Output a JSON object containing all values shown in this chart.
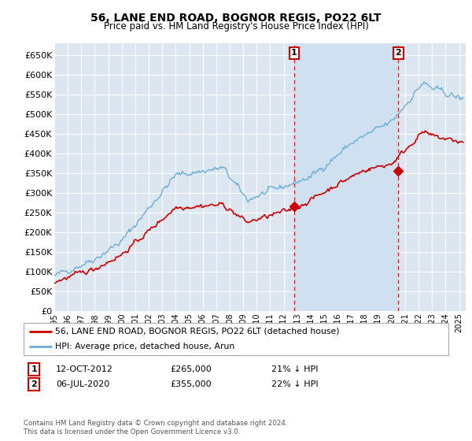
{
  "title": "56, LANE END ROAD, BOGNOR REGIS, PO22 6LT",
  "subtitle": "Price paid vs. HM Land Registry's House Price Index (HPI)",
  "ylim": [
    0,
    680000
  ],
  "yticks": [
    0,
    50000,
    100000,
    150000,
    200000,
    250000,
    300000,
    350000,
    400000,
    450000,
    500000,
    550000,
    600000,
    650000
  ],
  "xlim_start": 1995.0,
  "xlim_end": 2025.5,
  "background_color": "#ffffff",
  "plot_bg_color": "#dce6f1",
  "grid_color": "#ffffff",
  "hpi_color": "#6baed6",
  "price_color": "#cc0000",
  "shade_color": "#cfe0f0",
  "transaction1_date": 2012.78,
  "transaction1_price": 265000,
  "transaction2_date": 2020.5,
  "transaction2_price": 355000,
  "legend_line1": "56, LANE END ROAD, BOGNOR REGIS, PO22 6LT (detached house)",
  "legend_line2": "HPI: Average price, detached house, Arun",
  "annotation1_date": "12-OCT-2012",
  "annotation1_price": "£265,000",
  "annotation1_hpi": "21% ↓ HPI",
  "annotation2_date": "06-JUL-2020",
  "annotation2_price": "£355,000",
  "annotation2_hpi": "22% ↓ HPI",
  "footer": "Contains HM Land Registry data © Crown copyright and database right 2024.\nThis data is licensed under the Open Government Licence v3.0."
}
